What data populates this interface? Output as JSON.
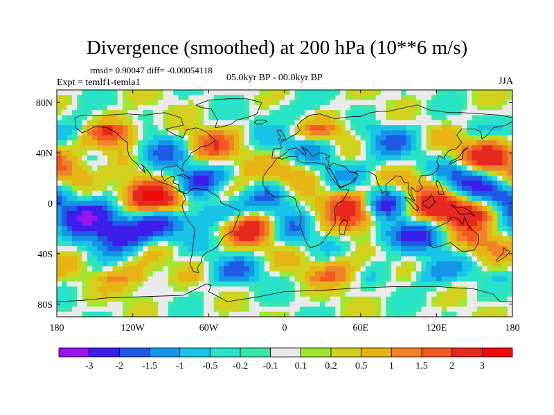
{
  "chart_data": {
    "type": "heatmap",
    "title": "Divergence (smoothed) at 200 hPa (10**6 m/s)",
    "stats_label": "rmsd= 0.90047 diff= -0.00054118",
    "left_label": "Expt = temlf1-temla1",
    "center_label": "05.0kyr BP - 00.0kyr BP",
    "right_label": "JJA",
    "xlabel": "",
    "ylabel": "",
    "xlim": [
      -180,
      180
    ],
    "ylim": [
      -90,
      90
    ],
    "x_ticks": [
      {
        "value": -180,
        "label": "180"
      },
      {
        "value": -120,
        "label": "120W"
      },
      {
        "value": -60,
        "label": "60W"
      },
      {
        "value": 0,
        "label": "0"
      },
      {
        "value": 60,
        "label": "60E"
      },
      {
        "value": 120,
        "label": "120E"
      },
      {
        "value": 180,
        "label": "180"
      }
    ],
    "y_ticks": [
      {
        "value": 80,
        "label": "80N"
      },
      {
        "value": 40,
        "label": "40N"
      },
      {
        "value": 0,
        "label": "0"
      },
      {
        "value": -40,
        "label": "40S"
      },
      {
        "value": -80,
        "label": "80S"
      }
    ],
    "colorbar": {
      "levels": [
        "-3",
        "-2",
        "-1.5",
        "-1",
        "-0.5",
        "-0.2",
        "-0.1",
        "0.1",
        "0.2",
        "0.5",
        "1",
        "1.5",
        "2",
        "3"
      ],
      "colors": [
        "#9a14f0",
        "#3c1eeb",
        "#1e5ae6",
        "#1496e6",
        "#18c3e8",
        "#28e3c8",
        "#38e8a8",
        "#eaeaea",
        "#a0e632",
        "#d2d21e",
        "#e6b414",
        "#f08228",
        "#f05a1e",
        "#e6281e",
        "#f00a0a"
      ]
    },
    "features": [
      {
        "lon": -155,
        "lat": -10,
        "value": -3
      },
      {
        "lon": -130,
        "lat": -25,
        "value": -2.5
      },
      {
        "lon": -100,
        "lat": -17,
        "value": -1.8
      },
      {
        "lon": -138,
        "lat": 58,
        "value": 2.5
      },
      {
        "lon": -170,
        "lat": 25,
        "value": 1.5
      },
      {
        "lon": -160,
        "lat": 60,
        "value": -1.5
      },
      {
        "lon": -112,
        "lat": 8,
        "value": 2
      },
      {
        "lon": -95,
        "lat": 3,
        "value": 2.5
      },
      {
        "lon": -78,
        "lat": 12,
        "value": -1.5
      },
      {
        "lon": -68,
        "lat": 18,
        "value": -1.2
      },
      {
        "lon": -55,
        "lat": -5,
        "value": -1.8
      },
      {
        "lon": -100,
        "lat": 40,
        "value": -1.5
      },
      {
        "lon": -60,
        "lat": 45,
        "value": 1.5
      },
      {
        "lon": -45,
        "lat": 8,
        "value": 1.2
      },
      {
        "lon": -25,
        "lat": -20,
        "value": 2.5
      },
      {
        "lon": -10,
        "lat": 5,
        "value": -1.5
      },
      {
        "lon": 2,
        "lat": -20,
        "value": -1.2
      },
      {
        "lon": 10,
        "lat": 25,
        "value": 1.2
      },
      {
        "lon": 20,
        "lat": 45,
        "value": -1.2
      },
      {
        "lon": 5,
        "lat": 70,
        "value": -1
      },
      {
        "lon": 55,
        "lat": 0,
        "value": 3
      },
      {
        "lon": 75,
        "lat": 0,
        "value": -3
      },
      {
        "lon": 80,
        "lat": -25,
        "value": -1.5
      },
      {
        "lon": 65,
        "lat": -15,
        "value": 1.5
      },
      {
        "lon": 45,
        "lat": 25,
        "value": -1
      },
      {
        "lon": 85,
        "lat": 50,
        "value": -1.2
      },
      {
        "lon": 115,
        "lat": 15,
        "value": 1.5
      },
      {
        "lon": 140,
        "lat": 20,
        "value": -2.5
      },
      {
        "lon": 160,
        "lat": 38,
        "value": 2.5
      },
      {
        "lon": 120,
        "lat": -5,
        "value": 2
      },
      {
        "lon": 150,
        "lat": -5,
        "value": 2.5
      },
      {
        "lon": 170,
        "lat": 5,
        "value": -2.5
      },
      {
        "lon": 110,
        "lat": -25,
        "value": -1.5
      },
      {
        "lon": 150,
        "lat": -30,
        "value": 1.2
      },
      {
        "lon": 40,
        "lat": -55,
        "value": 1.2
      },
      {
        "lon": -40,
        "lat": -55,
        "value": -1.2
      },
      {
        "lon": 120,
        "lat": -55,
        "value": -1.2
      },
      {
        "lon": -120,
        "lat": -60,
        "value": 1.2
      },
      {
        "lon": 30,
        "lat": 60,
        "value": 1.5
      }
    ]
  }
}
